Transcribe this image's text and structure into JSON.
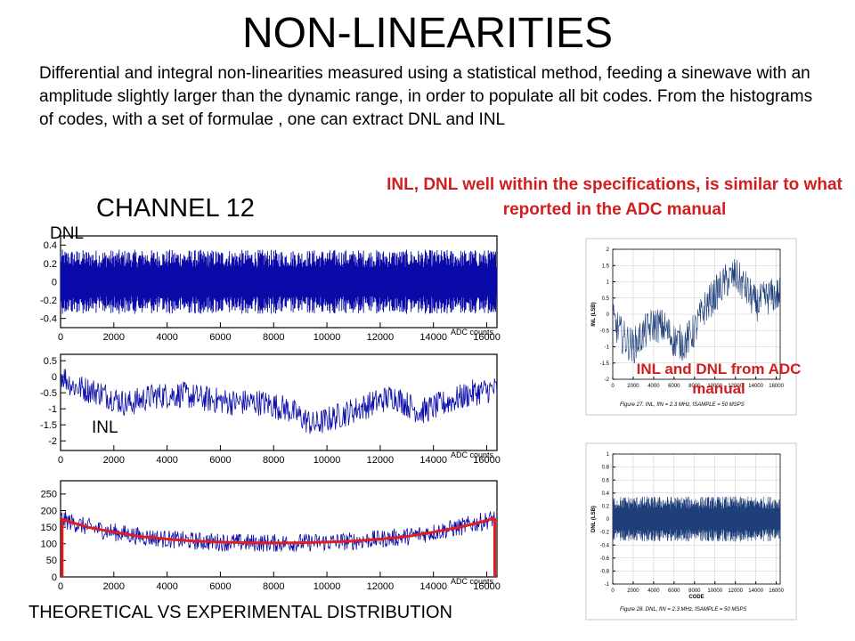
{
  "title": "NON-LINEARITIES",
  "description": "Differential and integral non-linearities measured using a statistical method, feeding a sinewave with an amplitude slightly larger than the dynamic range, in order to populate all bit codes. From the histograms of codes, with a set of formulae , one can extract DNL and INL",
  "channel_label": "CHANNEL 12",
  "specs_note": "INL, DNL well within the specifications, is similar to what reported in the ADC manual",
  "dnl_label": "DNL",
  "inl_label": "INL",
  "manual_note": "INL and DNL from ADC manual",
  "bottom_label": "THEORETICAL VS EXPERIMENTAL DISTRIBUTION",
  "colors": {
    "trace": "#0a0aa8",
    "fit": "#e01e1e",
    "manual_trace": "#1f3f7a",
    "note": "#d21e1e"
  },
  "chart_data": [
    {
      "type": "line",
      "id": "dnl",
      "xlabel": "ADC counts",
      "x_ticks": [
        0,
        2000,
        4000,
        6000,
        8000,
        10000,
        12000,
        14000,
        16000
      ],
      "y_ticks": [
        0.4,
        0.2,
        0,
        -0.2,
        -0.4
      ],
      "xlim": [
        0,
        16384
      ],
      "ylim": [
        -0.5,
        0.5
      ],
      "noise_amplitude": 0.35
    },
    {
      "type": "line",
      "id": "inl",
      "xlabel": "ADC counts",
      "x_ticks": [
        0,
        2000,
        4000,
        6000,
        8000,
        10000,
        12000,
        14000,
        16000
      ],
      "y_ticks": [
        0.5,
        0,
        -0.5,
        -1,
        -1.5,
        -2
      ],
      "xlim": [
        0,
        16384
      ],
      "ylim": [
        -2.3,
        0.7
      ],
      "trend_x": [
        0,
        500,
        1500,
        2500,
        3500,
        4500,
        5500,
        6500,
        7500,
        8500,
        9500,
        10500,
        11500,
        12500,
        13500,
        14500,
        15500,
        16200
      ],
      "trend_y": [
        0.1,
        -0.3,
        -0.5,
        -0.85,
        -0.6,
        -0.55,
        -0.7,
        -0.8,
        -0.8,
        -1.0,
        -1.5,
        -1.2,
        -0.9,
        -0.6,
        -1.1,
        -0.8,
        -0.5,
        -0.4
      ]
    },
    {
      "type": "line",
      "id": "histogram",
      "xlabel": "ADC counts",
      "x_ticks": [
        0,
        2000,
        4000,
        6000,
        8000,
        10000,
        12000,
        14000,
        16000
      ],
      "y_ticks": [
        250,
        200,
        150,
        100,
        50,
        0
      ],
      "xlim": [
        0,
        16384
      ],
      "ylim": [
        0,
        290
      ],
      "series": [
        {
          "x": [
            0,
            1000,
            2000,
            3000,
            4000,
            5000,
            6000,
            7000,
            8000,
            9000,
            10000,
            11000,
            12000,
            13000,
            14000,
            15000,
            16000,
            16300
          ],
          "y": [
            175,
            150,
            135,
            122,
            114,
            108,
            105,
            103,
            102,
            103,
            105,
            108,
            114,
            122,
            135,
            150,
            170,
            178
          ]
        }
      ]
    },
    {
      "type": "line",
      "id": "manual-inl",
      "xlabel": "",
      "ylabel": "INL (LSB)",
      "x_ticks": [
        0,
        2000,
        4000,
        6000,
        8000,
        10000,
        12000,
        14000,
        16000
      ],
      "y_ticks": [
        2.0,
        1.5,
        1.0,
        0.5,
        0,
        -0.5,
        -1.0,
        -1.5,
        -2.0
      ],
      "xlim": [
        0,
        16384
      ],
      "ylim": [
        -2.0,
        2.0
      ],
      "trend_x": [
        0,
        1000,
        2000,
        3000,
        4000,
        5000,
        6000,
        7000,
        8000,
        9000,
        10000,
        11000,
        12000,
        13000,
        14000,
        15000,
        16000
      ],
      "trend_y": [
        -0.2,
        -0.7,
        -1.0,
        -0.6,
        -0.3,
        -0.4,
        -0.8,
        -0.9,
        -0.5,
        0.2,
        0.6,
        1.0,
        1.2,
        0.8,
        0.3,
        0.5,
        0.6
      ],
      "caption": "Figure 27. INL, fIN = 2.3 MHz, fSAMPLE = 50 MSPS"
    },
    {
      "type": "line",
      "id": "manual-dnl",
      "xlabel": "CODE",
      "ylabel": "DNL (LSB)",
      "x_ticks": [
        0,
        2000,
        4000,
        6000,
        8000,
        10000,
        12000,
        14000,
        16000
      ],
      "y_ticks": [
        1.0,
        0.8,
        0.6,
        0.4,
        0.2,
        0,
        -0.2,
        -0.4,
        -0.6,
        -0.8,
        -1.0
      ],
      "xlim": [
        0,
        16384
      ],
      "ylim": [
        -1.0,
        1.0
      ],
      "noise_amplitude": 0.35,
      "caption": "Figure 28. DNL, fIN = 2.3 MHz, fSAMPLE = 50 MSPS"
    }
  ]
}
